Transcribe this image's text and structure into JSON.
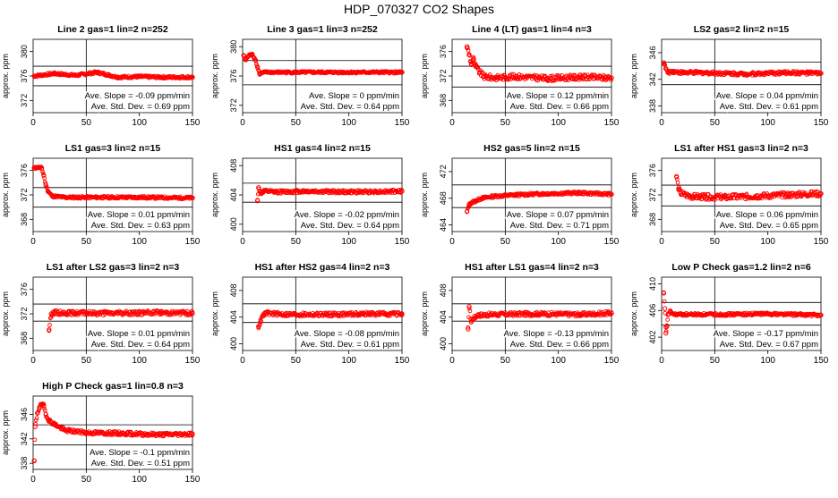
{
  "figure": {
    "title": "HDP_070327  CO2 Shapes"
  },
  "chart_data": [
    {
      "type": "scatter",
      "title": "Line 2 gas=1 lin=2 n=252",
      "ylabel": "approx. ppm",
      "xlim": [
        0,
        150
      ],
      "ylim": [
        370,
        382
      ],
      "xticks": [
        0,
        50,
        100,
        150
      ],
      "yticks": [
        372,
        376,
        380
      ],
      "vline": 50,
      "hlines": [
        374.4,
        377.6
      ],
      "slope_text": "Ave. Slope =  -0.09  ppm/min",
      "sd_text": "Ave. Std. Dev. =  0.69  ppm",
      "x": [
        1,
        20,
        40,
        60,
        80,
        100,
        120,
        150
      ],
      "y": [
        376.0,
        376.4,
        376.1,
        376.6,
        375.8,
        375.9,
        375.8,
        375.8
      ],
      "noise": 0.2
    },
    {
      "type": "scatter",
      "title": "Line 3 gas=1 lin=3 n=252",
      "ylabel": "approx. ppm",
      "xlim": [
        0,
        150
      ],
      "ylim": [
        371,
        381
      ],
      "xticks": [
        0,
        50,
        100,
        150
      ],
      "yticks": [
        372,
        376,
        380
      ],
      "vline": 50,
      "hlines": [
        374.8,
        378.1
      ],
      "slope_text": "Ave. Slope =  0  ppm/min",
      "sd_text": "Ave. Std. Dev. =  0.64  ppm",
      "x": [
        1,
        3,
        6,
        9,
        12,
        14,
        16,
        20,
        40,
        80,
        120,
        150
      ],
      "y": [
        378.8,
        378.2,
        378.8,
        379.0,
        378.2,
        377.2,
        376.3,
        376.5,
        376.5,
        376.5,
        376.5,
        376.5
      ],
      "noise": 0.15
    },
    {
      "type": "scatter",
      "title": "Line 4 (LT) gas=1 lin=4 n=3",
      "ylabel": "approx. ppm",
      "xlim": [
        0,
        150
      ],
      "ylim": [
        366,
        378
      ],
      "xticks": [
        0,
        50,
        100,
        150
      ],
      "yticks": [
        368,
        372,
        376
      ],
      "vline": 50,
      "hlines": [
        370.2,
        373.6
      ],
      "slope_text": "Ave. Slope =  0.12  ppm/min",
      "sd_text": "Ave. Std. Dev. =  0.66  ppm",
      "x": [
        14,
        16,
        18,
        20,
        22,
        26,
        30,
        40,
        60,
        90,
        120,
        150
      ],
      "y": [
        376.8,
        375.5,
        374.0,
        374.8,
        373.6,
        372.6,
        371.9,
        371.7,
        371.9,
        371.6,
        371.8,
        371.7
      ],
      "noise": 0.45
    },
    {
      "type": "scatter",
      "title": "LS2 gas=2 lin=2 n=15",
      "ylabel": "approx. ppm",
      "xlim": [
        0,
        150
      ],
      "ylim": [
        337,
        348
      ],
      "xticks": [
        0,
        50,
        100,
        150
      ],
      "yticks": [
        338,
        342,
        346
      ],
      "vline": 50,
      "hlines": [
        341.2,
        344.6
      ],
      "slope_text": "Ave. Slope =  0.04  ppm/min",
      "sd_text": "Ave. Std. Dev. =  0.61  ppm",
      "x": [
        2,
        4,
        6,
        10,
        20,
        40,
        80,
        120,
        150
      ],
      "y": [
        344.5,
        343.6,
        343.0,
        343.2,
        343.0,
        343.0,
        342.8,
        343.0,
        342.9
      ],
      "noise": 0.25
    },
    {
      "type": "scatter",
      "title": "LS1 gas=3 lin=2 n=15",
      "ylabel": "approx. ppm",
      "xlim": [
        0,
        150
      ],
      "ylim": [
        366,
        378
      ],
      "xticks": [
        0,
        50,
        100,
        150
      ],
      "yticks": [
        368,
        372,
        376
      ],
      "vline": 50,
      "hlines": [
        370.0,
        373.2
      ],
      "slope_text": "Ave. Slope =  0.01  ppm/min",
      "sd_text": "Ave. Std. Dev. =  0.63  ppm",
      "x": [
        1,
        4,
        8,
        10,
        12,
        14,
        18,
        30,
        60,
        100,
        150
      ],
      "y": [
        376.4,
        376.5,
        376.4,
        375.2,
        373.6,
        372.6,
        371.8,
        371.6,
        371.6,
        371.6,
        371.5
      ],
      "noise": 0.2
    },
    {
      "type": "scatter",
      "title": "HS1 gas=4 lin=2 n=15",
      "ylabel": "approx. ppm",
      "xlim": [
        0,
        150
      ],
      "ylim": [
        399,
        409
      ],
      "xticks": [
        0,
        50,
        100,
        150
      ],
      "yticks": [
        400,
        404,
        408
      ],
      "vline": 50,
      "hlines": [
        403.0,
        405.6
      ],
      "slope_text": "Ave. Slope =  -0.02  ppm/min",
      "sd_text": "Ave. Std. Dev. =  0.64  ppm",
      "x": [
        14,
        15,
        17,
        20,
        30,
        60,
        100,
        150
      ],
      "y": [
        403.2,
        405.0,
        404.2,
        404.5,
        404.4,
        404.5,
        404.4,
        404.5
      ],
      "noise": 0.22
    },
    {
      "type": "scatter",
      "title": "HS2 gas=5 lin=2 n=15",
      "ylabel": "approx. ppm",
      "xlim": [
        0,
        150
      ],
      "ylim": [
        463,
        474
      ],
      "xticks": [
        0,
        50,
        100,
        150
      ],
      "yticks": [
        464,
        468,
        472
      ],
      "vline": 50,
      "hlines": [
        466.6,
        470.0
      ],
      "slope_text": "Ave. Slope =  0.07  ppm/min",
      "sd_text": "Ave. Std. Dev. =  0.71  ppm",
      "x": [
        14,
        16,
        18,
        22,
        28,
        40,
        60,
        90,
        120,
        150
      ],
      "y": [
        466.0,
        467.0,
        467.3,
        467.6,
        468.0,
        468.3,
        468.5,
        468.7,
        468.8,
        468.6
      ],
      "noise": 0.2
    },
    {
      "type": "scatter",
      "title": "LS1 after HS1 gas=3 lin=2 n=3",
      "ylabel": "approx. ppm",
      "xlim": [
        0,
        150
      ],
      "ylim": [
        366,
        378
      ],
      "xticks": [
        0,
        50,
        100,
        150
      ],
      "yticks": [
        368,
        372,
        376
      ],
      "vline": 50,
      "hlines": [
        370.2,
        373.6
      ],
      "slope_text": "Ave. Slope =  0.06  ppm/min",
      "sd_text": "Ave. Std. Dev. =  0.65  ppm",
      "x": [
        14,
        16,
        18,
        22,
        30,
        60,
        90,
        120,
        150
      ],
      "y": [
        375.0,
        373.0,
        372.3,
        372.0,
        371.7,
        371.6,
        371.8,
        372.0,
        372.2
      ],
      "noise": 0.45
    },
    {
      "type": "scatter",
      "title": "LS1 after LS2 gas=3 lin=2 n=3",
      "ylabel": "approx. ppm",
      "xlim": [
        0,
        150
      ],
      "ylim": [
        366,
        378
      ],
      "xticks": [
        0,
        50,
        100,
        150
      ],
      "yticks": [
        368,
        372,
        376
      ],
      "vline": 50,
      "hlines": [
        370.8,
        373.6
      ],
      "slope_text": "Ave. Slope =  0.01  ppm/min",
      "sd_text": "Ave. Std. Dev. =  0.64  ppm",
      "x": [
        15,
        17,
        20,
        40,
        80,
        120,
        150
      ],
      "y": [
        369.4,
        372.0,
        372.2,
        372.1,
        372.1,
        372.2,
        372.1
      ],
      "noise": 0.35
    },
    {
      "type": "scatter",
      "title": "HS1 after HS2 gas=4 lin=2 n=3",
      "ylabel": "approx. ppm",
      "xlim": [
        0,
        150
      ],
      "ylim": [
        399,
        410
      ],
      "xticks": [
        0,
        50,
        100,
        150
      ],
      "yticks": [
        400,
        404,
        408
      ],
      "vline": 50,
      "hlines": [
        403.2,
        406.0
      ],
      "slope_text": "Ave. Slope =  -0.08  ppm/min",
      "sd_text": "Ave. Std. Dev. =  0.61  ppm",
      "x": [
        15,
        17,
        19,
        22,
        40,
        80,
        120,
        150
      ],
      "y": [
        402.6,
        403.4,
        404.2,
        404.6,
        404.4,
        404.4,
        404.5,
        404.5
      ],
      "noise": 0.3
    },
    {
      "type": "scatter",
      "title": "HS1 after LS1 gas=4 lin=2 n=3",
      "ylabel": "approx. ppm",
      "xlim": [
        0,
        150
      ],
      "ylim": [
        399,
        410
      ],
      "xticks": [
        0,
        50,
        100,
        150
      ],
      "yticks": [
        400,
        404,
        408
      ],
      "vline": 50,
      "hlines": [
        403.4,
        406.0
      ],
      "slope_text": "Ave. Slope =  -0.13  ppm/min",
      "sd_text": "Ave. Std. Dev. =  0.66  ppm",
      "x": [
        15,
        16,
        18,
        20,
        24,
        40,
        80,
        120,
        150
      ],
      "y": [
        402.2,
        405.6,
        403.3,
        403.8,
        404.3,
        404.4,
        404.5,
        404.4,
        404.6
      ],
      "noise": 0.3
    },
    {
      "type": "scatter",
      "title": "Low P Check gas=1.2 lin=2 n=6",
      "ylabel": "approx. ppm",
      "xlim": [
        0,
        150
      ],
      "ylim": [
        400,
        411
      ],
      "xticks": [
        0,
        50,
        100,
        150
      ],
      "yticks": [
        402,
        406,
        410
      ],
      "vline": 50,
      "hlines": [
        403.8,
        407.2
      ],
      "slope_text": "Ave. Slope =  -0.17  ppm/min",
      "sd_text": "Ave. Std. Dev. =  0.67  ppm",
      "x": [
        2,
        3,
        4,
        5,
        6,
        8,
        12,
        20,
        60,
        100,
        150
      ],
      "y": [
        408.6,
        406.3,
        402.6,
        403.6,
        405.4,
        405.8,
        405.4,
        405.4,
        405.4,
        405.5,
        405.3
      ],
      "noise": 0.2
    },
    {
      "type": "scatter",
      "title": "High P Check gas=1 lin=0.8 n=3",
      "ylabel": "approx. ppm",
      "xlim": [
        0,
        150
      ],
      "ylim": [
        337,
        349
      ],
      "xticks": [
        0,
        50,
        100,
        150
      ],
      "yticks": [
        338,
        342,
        346
      ],
      "vline": 50,
      "hlines": [
        341.0,
        344.3
      ],
      "slope_text": "Ave. Slope =  -0.1  ppm/min",
      "sd_text": "Ave. Std. Dev. =  0.51  ppm",
      "x": [
        1,
        2,
        4,
        6,
        8,
        10,
        12,
        15,
        20,
        30,
        50,
        80,
        120,
        150
      ],
      "y": [
        338.4,
        344.0,
        346.2,
        347.2,
        347.6,
        347.4,
        346.0,
        345.0,
        344.4,
        343.4,
        343.0,
        342.9,
        342.7,
        342.8
      ],
      "noise": 0.3
    }
  ]
}
